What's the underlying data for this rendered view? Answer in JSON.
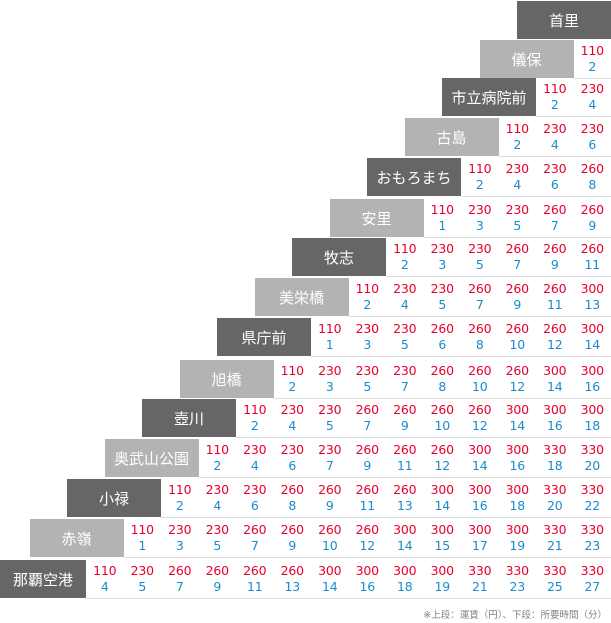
{
  "stations": [
    "首里",
    "儀保",
    "市立病院前",
    "古島",
    "おもろまち",
    "安里",
    "牧志",
    "美栄橋",
    "県庁前",
    "旭橋",
    "壺川",
    "奥武山公園",
    "小禄",
    "赤嶺",
    "那覇空港"
  ],
  "rows": [
    {
      "fares": [],
      "times": []
    },
    {
      "fares": [
        "110"
      ],
      "times": [
        "2"
      ]
    },
    {
      "fares": [
        "110",
        "230"
      ],
      "times": [
        "2",
        "4"
      ]
    },
    {
      "fares": [
        "110",
        "230",
        "230"
      ],
      "times": [
        "2",
        "4",
        "6"
      ]
    },
    {
      "fares": [
        "110",
        "230",
        "230",
        "260"
      ],
      "times": [
        "2",
        "4",
        "6",
        "8"
      ]
    },
    {
      "fares": [
        "110",
        "230",
        "230",
        "260",
        "260"
      ],
      "times": [
        "1",
        "3",
        "5",
        "7",
        "9"
      ]
    },
    {
      "fares": [
        "110",
        "230",
        "230",
        "260",
        "260",
        "260"
      ],
      "times": [
        "2",
        "3",
        "5",
        "7",
        "9",
        "11"
      ]
    },
    {
      "fares": [
        "110",
        "230",
        "230",
        "260",
        "260",
        "260",
        "300"
      ],
      "times": [
        "2",
        "4",
        "5",
        "7",
        "9",
        "11",
        "13"
      ]
    },
    {
      "fares": [
        "110",
        "230",
        "230",
        "260",
        "260",
        "260",
        "260",
        "300"
      ],
      "times": [
        "1",
        "3",
        "5",
        "6",
        "8",
        "10",
        "12",
        "14"
      ]
    },
    {
      "fares": [
        "110",
        "230",
        "230",
        "230",
        "260",
        "260",
        "260",
        "300",
        "300"
      ],
      "times": [
        "2",
        "3",
        "5",
        "7",
        "8",
        "10",
        "12",
        "14",
        "16"
      ]
    },
    {
      "fares": [
        "110",
        "230",
        "230",
        "260",
        "260",
        "260",
        "260",
        "300",
        "300",
        "300"
      ],
      "times": [
        "2",
        "4",
        "5",
        "7",
        "9",
        "10",
        "12",
        "14",
        "16",
        "18"
      ]
    },
    {
      "fares": [
        "110",
        "230",
        "230",
        "230",
        "260",
        "260",
        "260",
        "300",
        "300",
        "330",
        "330"
      ],
      "times": [
        "2",
        "4",
        "6",
        "7",
        "9",
        "11",
        "12",
        "14",
        "16",
        "18",
        "20"
      ]
    },
    {
      "fares": [
        "110",
        "230",
        "230",
        "260",
        "260",
        "260",
        "260",
        "300",
        "300",
        "300",
        "330",
        "330"
      ],
      "times": [
        "2",
        "4",
        "6",
        "8",
        "9",
        "11",
        "13",
        "14",
        "16",
        "18",
        "20",
        "22"
      ]
    },
    {
      "fares": [
        "110",
        "230",
        "230",
        "260",
        "260",
        "260",
        "260",
        "300",
        "300",
        "300",
        "300",
        "330",
        "330"
      ],
      "times": [
        "1",
        "3",
        "5",
        "7",
        "9",
        "10",
        "12",
        "14",
        "15",
        "17",
        "19",
        "21",
        "23"
      ]
    },
    {
      "fares": [
        "110",
        "230",
        "260",
        "260",
        "260",
        "260",
        "300",
        "300",
        "300",
        "300",
        "330",
        "330",
        "330",
        "330"
      ],
      "times": [
        "4",
        "5",
        "7",
        "9",
        "11",
        "13",
        "14",
        "16",
        "18",
        "19",
        "21",
        "23",
        "25",
        "27"
      ]
    }
  ],
  "footnote": "※上段：運賃（円）、下段：所要時間（分）"
}
